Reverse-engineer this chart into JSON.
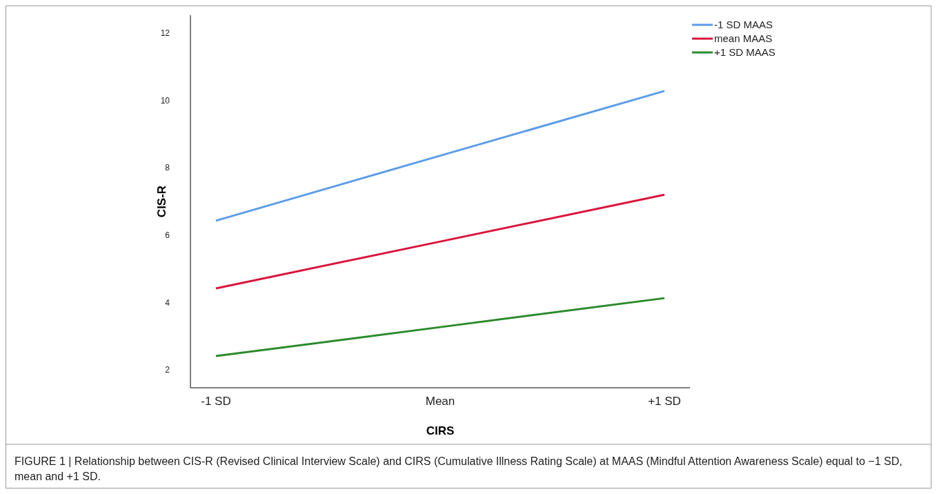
{
  "chart_data": {
    "type": "line",
    "xlabel": "CIRS",
    "ylabel": "CIS-R",
    "categories": [
      "-1 SD",
      "Mean",
      "+1 SD"
    ],
    "series": [
      {
        "name": "-1 SD MAAS",
        "color": "#5b9de8",
        "values": [
          6.43,
          8.36,
          10.28
        ]
      },
      {
        "name": "mean MAAS",
        "color": "#d9143c",
        "values": [
          4.42,
          5.81,
          7.2
        ]
      },
      {
        "name": "+1 SD MAAS",
        "color": "#2a8a2a",
        "values": [
          2.41,
          3.27,
          4.13
        ]
      }
    ],
    "ylim": [
      1.47,
      12.53
    ],
    "yticks": [
      2,
      4,
      6,
      8,
      10,
      12
    ],
    "legend": "top right",
    "grid": false,
    "marker": "none",
    "line_style": "solid",
    "annotations": [
      "FIGURE 1 | Relationship between CIS-R (Revised Clinical Interview Scale) and CIRS (Cumulative Illness Rating Scale) at MAAS (Mindful Attention Awareness Scale) equal to −1 SD, mean and +1 SD."
    ]
  }
}
